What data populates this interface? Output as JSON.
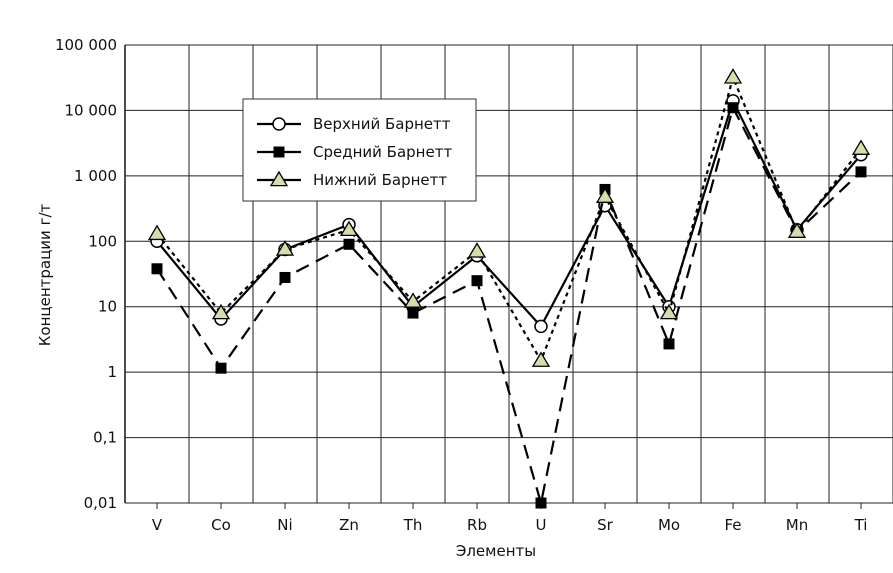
{
  "chart_data": {
    "type": "line",
    "xlabel": "Элементы",
    "ylabel": "Концентрации г/т",
    "yscale": "log",
    "ylim": [
      0.01,
      100000
    ],
    "yticks": [
      {
        "value": 100000,
        "label": "100 000"
      },
      {
        "value": 10000,
        "label": "10 000"
      },
      {
        "value": 1000,
        "label": "1 000"
      },
      {
        "value": 100,
        "label": "100"
      },
      {
        "value": 10,
        "label": "10"
      },
      {
        "value": 1,
        "label": "1"
      },
      {
        "value": 0.1,
        "label": "0,1"
      },
      {
        "value": 0.01,
        "label": "0,01"
      }
    ],
    "categories": [
      "V",
      "Co",
      "Ni",
      "Zn",
      "Th",
      "Rb",
      "U",
      "Sr",
      "Mo",
      "Fe",
      "Mn",
      "Ti"
    ],
    "grid": true,
    "legend_position": "upper-left",
    "series": [
      {
        "name": "Верхний Барнетт",
        "line": "solid",
        "marker": "circle-open",
        "color": "#000000",
        "values": [
          100,
          6.5,
          75,
          180,
          10,
          60,
          5,
          350,
          10,
          14000,
          150,
          2100
        ]
      },
      {
        "name": "Средний Барнетт",
        "line": "long-dash",
        "marker": "square-filled",
        "color": "#000000",
        "values": [
          38,
          1.15,
          28,
          90,
          8,
          25,
          0.01,
          620,
          2.7,
          11000,
          140,
          1150
        ]
      },
      {
        "name": "Нижний Барнетт",
        "line": "short-dash",
        "marker": "triangle",
        "color": "#000000",
        "marker_fill": "#d8dca8",
        "values": [
          130,
          8,
          75,
          150,
          12,
          70,
          1.5,
          480,
          8,
          32000,
          140,
          2600
        ]
      }
    ]
  }
}
